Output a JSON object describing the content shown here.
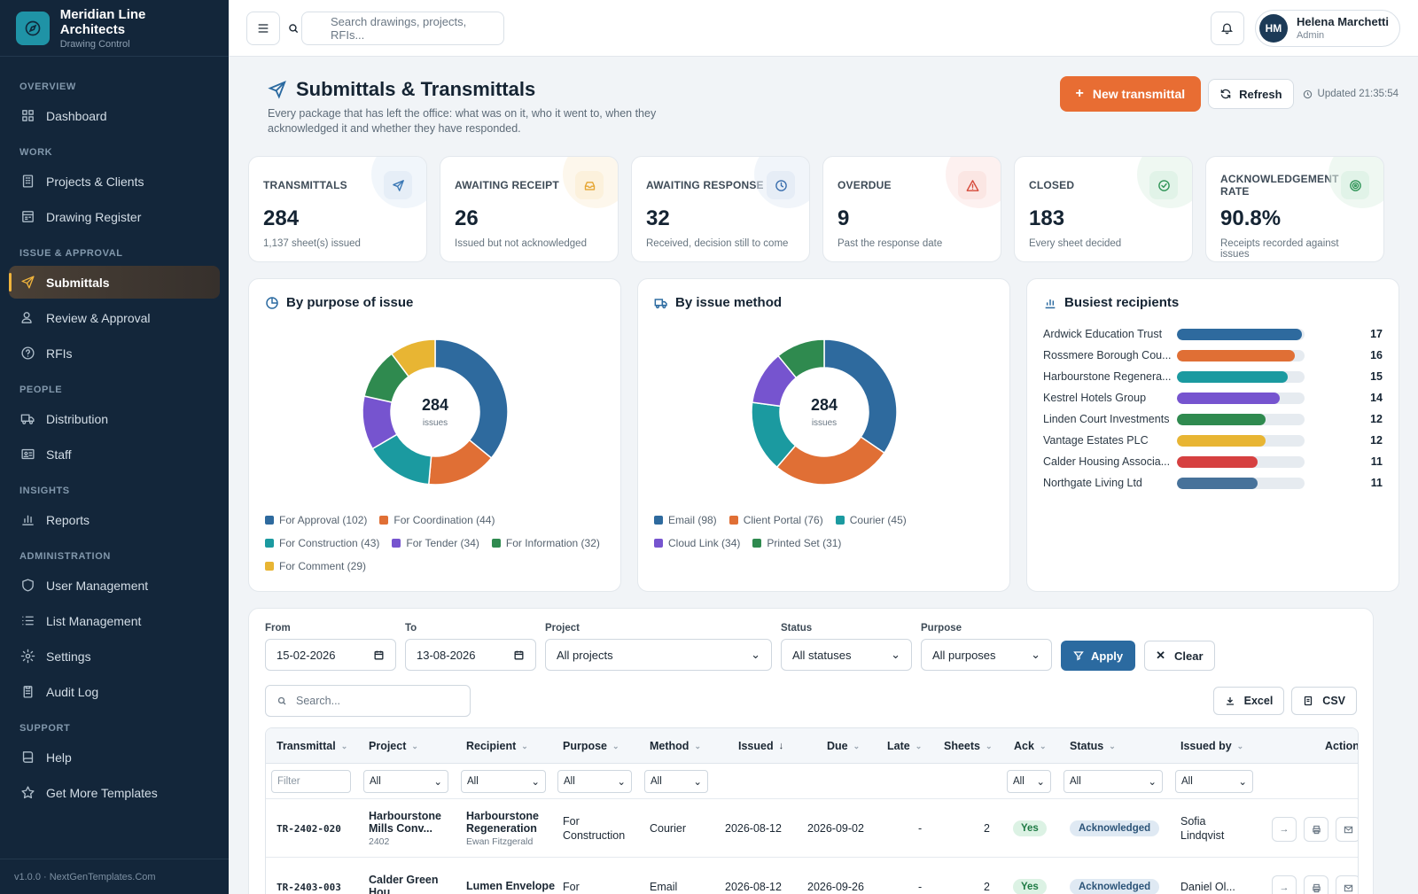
{
  "brand": {
    "name": "Meridian Line Architects",
    "sub": "Drawing Control"
  },
  "sidebar": {
    "sections": [
      {
        "title": "OVERVIEW",
        "items": [
          {
            "label": "Dashboard",
            "icon": "grid-icon"
          }
        ]
      },
      {
        "title": "WORK",
        "items": [
          {
            "label": "Projects & Clients",
            "icon": "building-icon"
          },
          {
            "label": "Drawing Register",
            "icon": "register-icon"
          }
        ]
      },
      {
        "title": "ISSUE & APPROVAL",
        "items": [
          {
            "label": "Submittals",
            "icon": "send-icon",
            "active": true
          },
          {
            "label": "Review & Approval",
            "icon": "user-check-icon"
          },
          {
            "label": "RFIs",
            "icon": "question-icon"
          }
        ]
      },
      {
        "title": "PEOPLE",
        "items": [
          {
            "label": "Distribution",
            "icon": "truck-icon"
          },
          {
            "label": "Staff",
            "icon": "id-card-icon"
          }
        ]
      },
      {
        "title": "INSIGHTS",
        "items": [
          {
            "label": "Reports",
            "icon": "bar-chart-icon"
          }
        ]
      },
      {
        "title": "ADMINISTRATION",
        "items": [
          {
            "label": "User Management",
            "icon": "shield-icon"
          },
          {
            "label": "List Management",
            "icon": "list-icon"
          },
          {
            "label": "Settings",
            "icon": "gear-icon"
          },
          {
            "label": "Audit Log",
            "icon": "clipboard-icon"
          }
        ]
      },
      {
        "title": "SUPPORT",
        "items": [
          {
            "label": "Help",
            "icon": "book-icon"
          },
          {
            "label": "Get More Templates",
            "icon": "star-icon"
          }
        ]
      }
    ],
    "footer": "v1.0.0 · NextGenTemplates.Com"
  },
  "topbar": {
    "search_placeholder": "Search drawings, projects, RFIs...",
    "user": {
      "initials": "HM",
      "name": "Helena Marchetti",
      "role": "Admin"
    }
  },
  "page": {
    "title": "Submittals & Transmittals",
    "description": "Every package that has left the office: what was on it, who it went to, when they acknowledged it and whether they have responded.",
    "new_button": "New transmittal",
    "refresh_button": "Refresh",
    "updated": "Updated 21:35:54"
  },
  "kpis": [
    {
      "label": "TRANSMITTALS",
      "value": "284",
      "sub": "1,137 sheet(s) issued",
      "icon": "send-icon",
      "color": "#3b78b5",
      "bg": "#e6eef7"
    },
    {
      "label": "AWAITING RECEIPT",
      "value": "26",
      "sub": "Issued but not acknowledged",
      "icon": "inbox-icon",
      "color": "#e5a531",
      "bg": "#fcf1dc"
    },
    {
      "label": "AWAITING RESPONSE",
      "value": "32",
      "sub": "Received, decision still to come",
      "icon": "clock-icon",
      "color": "#3b6fae",
      "bg": "#e6edf6"
    },
    {
      "label": "OVERDUE",
      "value": "9",
      "sub": "Past the response date",
      "icon": "alert-icon",
      "color": "#d64a3a",
      "bg": "#fbe6e3"
    },
    {
      "label": "CLOSED",
      "value": "183",
      "sub": "Every sheet decided",
      "icon": "check-circle-icon",
      "color": "#2f9457",
      "bg": "#e1f3e8"
    },
    {
      "label": "ACKNOWLEDGEMENT RATE",
      "value": "90.8%",
      "sub": "Receipts recorded against issues",
      "icon": "target-icon",
      "color": "#2f9457",
      "bg": "#e1f3e8"
    }
  ],
  "chart_data": [
    {
      "type": "pie",
      "title": "By purpose of issue",
      "center_value": "284",
      "center_label": "issues",
      "categories": [
        "For Approval",
        "For Coordination",
        "For Construction",
        "For Tender",
        "For Information",
        "For Comment"
      ],
      "values": [
        102,
        44,
        43,
        34,
        32,
        29
      ],
      "legend": [
        "For Approval (102)",
        "For Coordination (44)",
        "For Construction (43)",
        "For Tender (34)",
        "For Information (32)",
        "For Comment (29)"
      ],
      "colors": [
        "#2e6a9e",
        "#e06f35",
        "#1b9aa0",
        "#7654cf",
        "#2f8a4f",
        "#e8b533"
      ]
    },
    {
      "type": "pie",
      "title": "By issue method",
      "center_value": "284",
      "center_label": "issues",
      "categories": [
        "Email",
        "Client Portal",
        "Courier",
        "Cloud Link",
        "Printed Set"
      ],
      "values": [
        98,
        76,
        45,
        34,
        31
      ],
      "legend": [
        "Email (98)",
        "Client Portal (76)",
        "Courier (45)",
        "Cloud Link (34)",
        "Printed Set (31)"
      ],
      "colors": [
        "#2e6a9e",
        "#e06f35",
        "#1b9aa0",
        "#7654cf",
        "#2f8a4f"
      ]
    },
    {
      "type": "bar",
      "title": "Busiest recipients",
      "categories": [
        "Ardwick Education Trust",
        "Rossmere Borough Cou...",
        "Harbourstone Regenera...",
        "Kestrel Hotels Group",
        "Linden Court Investments",
        "Vantage Estates PLC",
        "Calder Housing Associa...",
        "Northgate Living Ltd"
      ],
      "values": [
        17,
        16,
        15,
        14,
        12,
        12,
        11,
        11
      ],
      "xlim": [
        0,
        17
      ],
      "colors": [
        "#2e6a9e",
        "#e06f35",
        "#1b9aa0",
        "#7654cf",
        "#2f8a4f",
        "#e8b533",
        "#d64040",
        "#47729a"
      ]
    }
  ],
  "filters": {
    "from_label": "From",
    "from_value": "15-02-2026",
    "to_label": "To",
    "to_value": "13-08-2026",
    "project_label": "Project",
    "project_value": "All projects",
    "status_label": "Status",
    "status_value": "All statuses",
    "purpose_label": "Purpose",
    "purpose_value": "All purposes",
    "apply": "Apply",
    "clear": "Clear",
    "search_placeholder": "Search...",
    "excel": "Excel",
    "csv": "CSV"
  },
  "table": {
    "columns": [
      "Transmittal",
      "Project",
      "Recipient",
      "Purpose",
      "Method",
      "Issued",
      "Due",
      "Late",
      "Sheets",
      "Ack",
      "Status",
      "Issued by",
      "Actions"
    ],
    "filter_placeholder": "Filter",
    "filter_all": "All",
    "rows": [
      {
        "id": "TR-2402-020",
        "project": "Harbourstone Mills Conv...",
        "project_code": "2402",
        "recipient": "Harbourstone Regeneration",
        "recipient_contact": "Ewan Fitzgerald",
        "purpose": "For Construction",
        "method": "Courier",
        "issued": "2026-08-12",
        "due": "2026-09-02",
        "late": "-",
        "sheets": "2",
        "ack": "Yes",
        "status": "Acknowledged",
        "issued_by": "Sofia Lindqvist"
      },
      {
        "id": "TR-2403-003",
        "project": "Calder Green Hou...",
        "project_code": "",
        "recipient": "Lumen Envelope",
        "recipient_contact": "",
        "purpose": "For",
        "method": "Email",
        "issued": "2026-08-12",
        "due": "2026-09-26",
        "late": "-",
        "sheets": "2",
        "ack": "Yes",
        "status": "Acknowledged",
        "issued_by": "Daniel Ol..."
      }
    ]
  }
}
